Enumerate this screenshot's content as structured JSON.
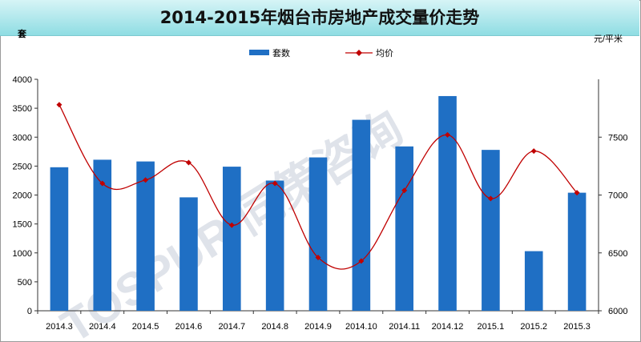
{
  "title": "2014-2015年烟台市房地产成交量价走势",
  "watermark": "TOSPUR 同策咨询",
  "chart_data": {
    "type": "bar",
    "title": "2014-2015年烟台市房地产成交量价走势",
    "categories": [
      "2014.3",
      "2014.4",
      "2014.5",
      "2014.6",
      "2014.7",
      "2014.8",
      "2014.9",
      "2014.10",
      "2014.11",
      "2014.12",
      "2015.1",
      "2015.2",
      "2015.3"
    ],
    "series": [
      {
        "name": "套数",
        "type": "bar",
        "axis": "left",
        "color": "#1f6fc4",
        "values": [
          2480,
          2610,
          2580,
          1960,
          2490,
          2250,
          2650,
          3300,
          2840,
          3710,
          2780,
          1030,
          2040
        ]
      },
      {
        "name": "均价",
        "type": "line",
        "axis": "right",
        "color": "#c00000",
        "values": [
          7780,
          7100,
          7130,
          7280,
          6740,
          7100,
          6460,
          6430,
          7040,
          7520,
          6970,
          7380,
          7020
        ]
      }
    ],
    "ylabel": "套",
    "y2label": "元/平米",
    "ylim": [
      0,
      4000
    ],
    "yticks": [
      0,
      500,
      1000,
      1500,
      2000,
      2500,
      3000,
      3500,
      4000
    ],
    "y2lim": [
      6000,
      8000
    ],
    "y2ticks": [
      6000,
      6500,
      7000,
      7500
    ],
    "grid": false,
    "legend": "top-center"
  }
}
